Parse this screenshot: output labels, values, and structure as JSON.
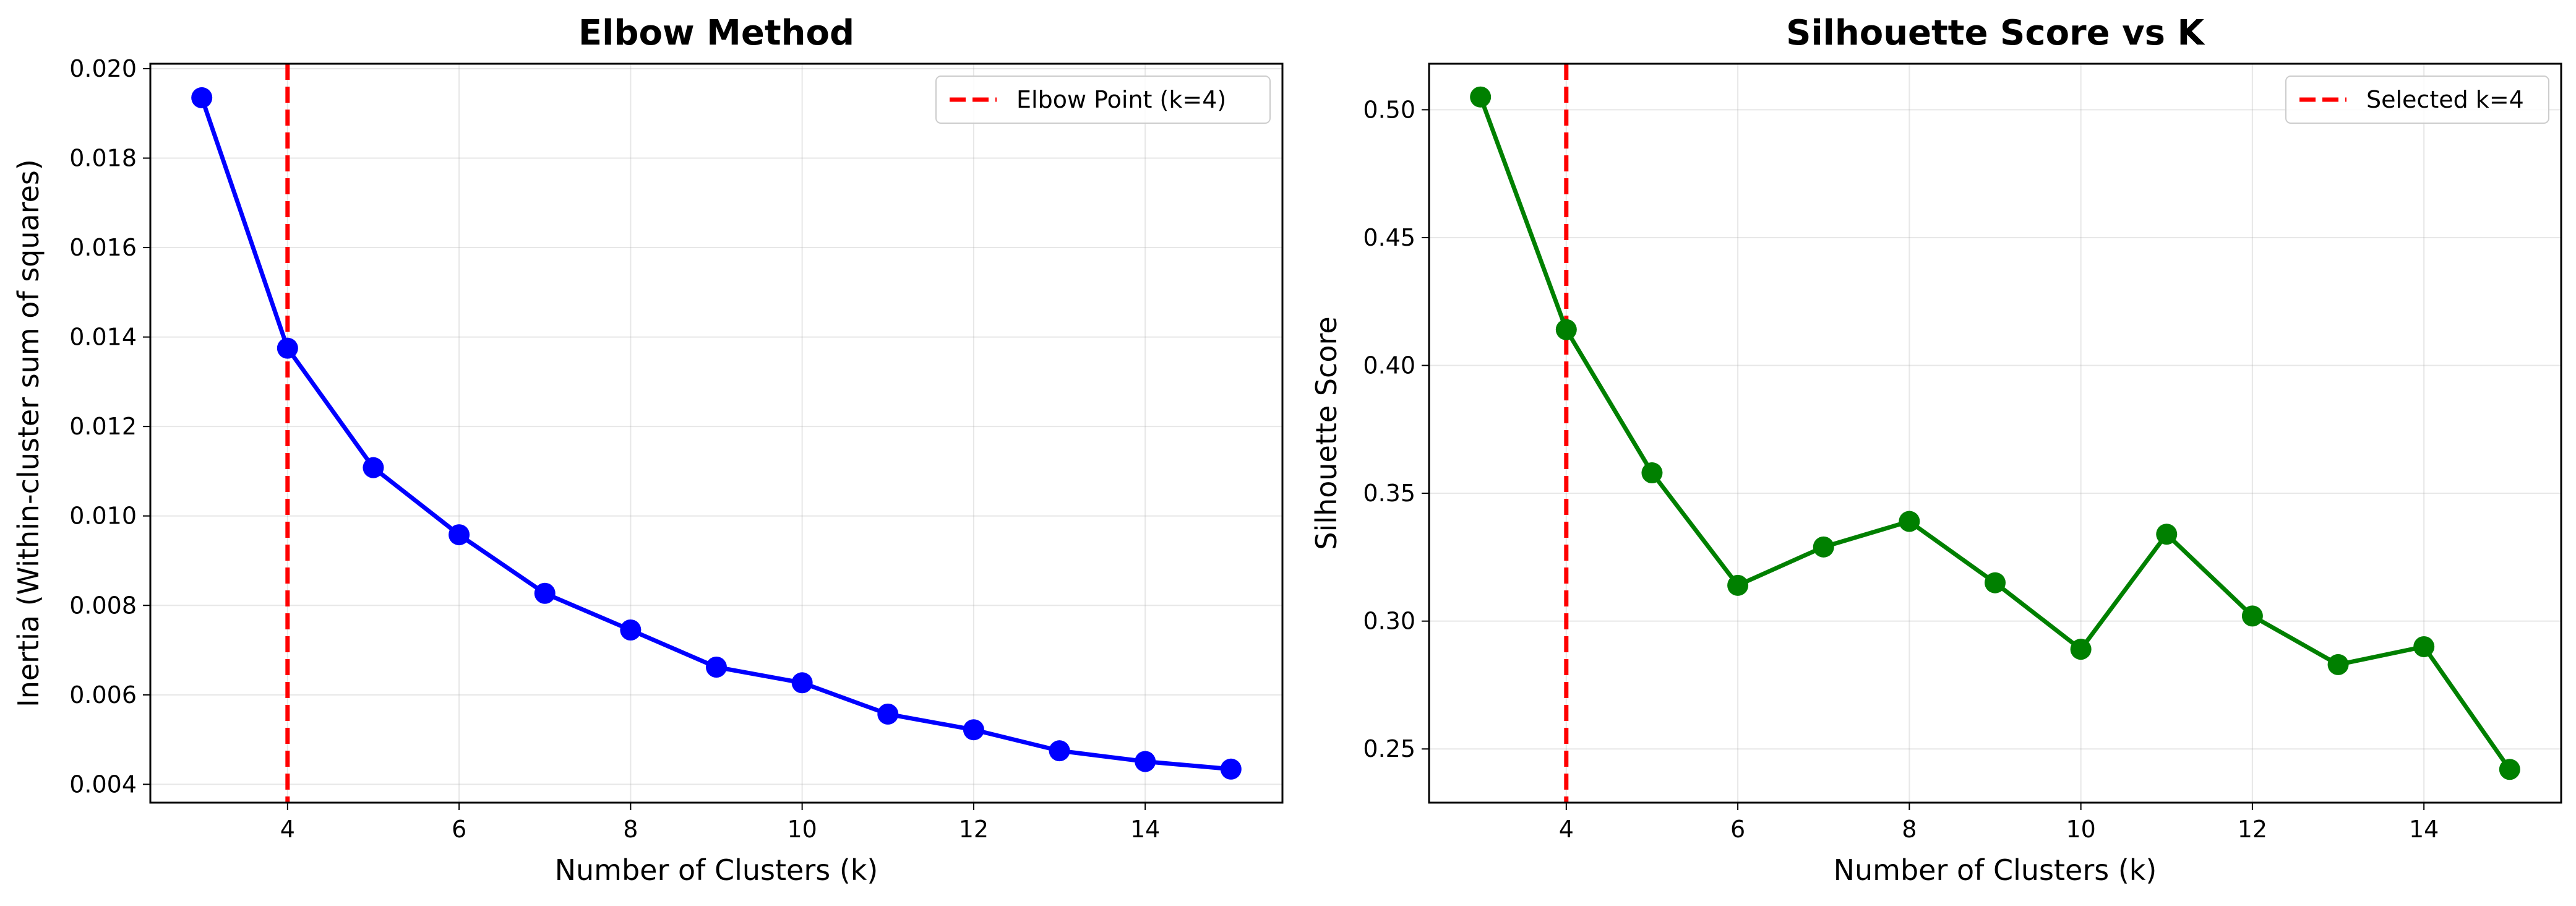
{
  "chart_data": [
    {
      "type": "line",
      "title": "Elbow Method",
      "xlabel": "Number of Clusters (k)",
      "ylabel": "Inertia (Within-cluster sum of squares)",
      "x": [
        3,
        4,
        5,
        6,
        7,
        8,
        9,
        10,
        11,
        12,
        13,
        14,
        15
      ],
      "series": [
        {
          "values": [
            0.01935,
            0.01375,
            0.01108,
            0.00958,
            0.00827,
            0.00745,
            0.00662,
            0.00627,
            0.00557,
            0.00522,
            0.00475,
            0.00451,
            0.00434
          ],
          "color": "#0000ff",
          "marker": "circle"
        }
      ],
      "reference_line": {
        "x": 4,
        "label": "Elbow Point (k=4)",
        "color": "#ff0000",
        "style": "dashed"
      },
      "xlim": [
        2.4,
        15.6
      ],
      "ylim": [
        0.00359,
        0.02011
      ],
      "xticks": [
        4,
        6,
        8,
        10,
        12,
        14
      ],
      "xtick_labels": [
        "4",
        "6",
        "8",
        "10",
        "12",
        "14"
      ],
      "yticks": [
        0.004,
        0.006,
        0.008,
        0.01,
        0.012,
        0.014,
        0.016,
        0.018,
        0.02
      ],
      "ytick_labels": [
        "0.004",
        "0.006",
        "0.008",
        "0.010",
        "0.012",
        "0.014",
        "0.016",
        "0.018",
        "0.020"
      ],
      "grid": true,
      "legend": "upper right"
    },
    {
      "type": "line",
      "title": "Silhouette Score vs K",
      "xlabel": "Number of Clusters (k)",
      "ylabel": "Silhouette Score",
      "x": [
        3,
        4,
        5,
        6,
        7,
        8,
        9,
        10,
        11,
        12,
        13,
        14,
        15
      ],
      "series": [
        {
          "values": [
            0.505,
            0.414,
            0.358,
            0.314,
            0.329,
            0.339,
            0.315,
            0.289,
            0.334,
            0.302,
            0.283,
            0.29,
            0.242
          ],
          "color": "#008000",
          "marker": "circle"
        }
      ],
      "reference_line": {
        "x": 4,
        "label": "Selected k=4",
        "color": "#ff0000",
        "style": "dashed"
      },
      "xlim": [
        2.4,
        15.6
      ],
      "ylim": [
        0.229,
        0.518
      ],
      "xticks": [
        4,
        6,
        8,
        10,
        12,
        14
      ],
      "xtick_labels": [
        "4",
        "6",
        "8",
        "10",
        "12",
        "14"
      ],
      "yticks": [
        0.25,
        0.3,
        0.35,
        0.4,
        0.45,
        0.5
      ],
      "ytick_labels": [
        "0.25",
        "0.30",
        "0.35",
        "0.40",
        "0.45",
        "0.50"
      ],
      "grid": true,
      "legend": "upper right"
    }
  ]
}
